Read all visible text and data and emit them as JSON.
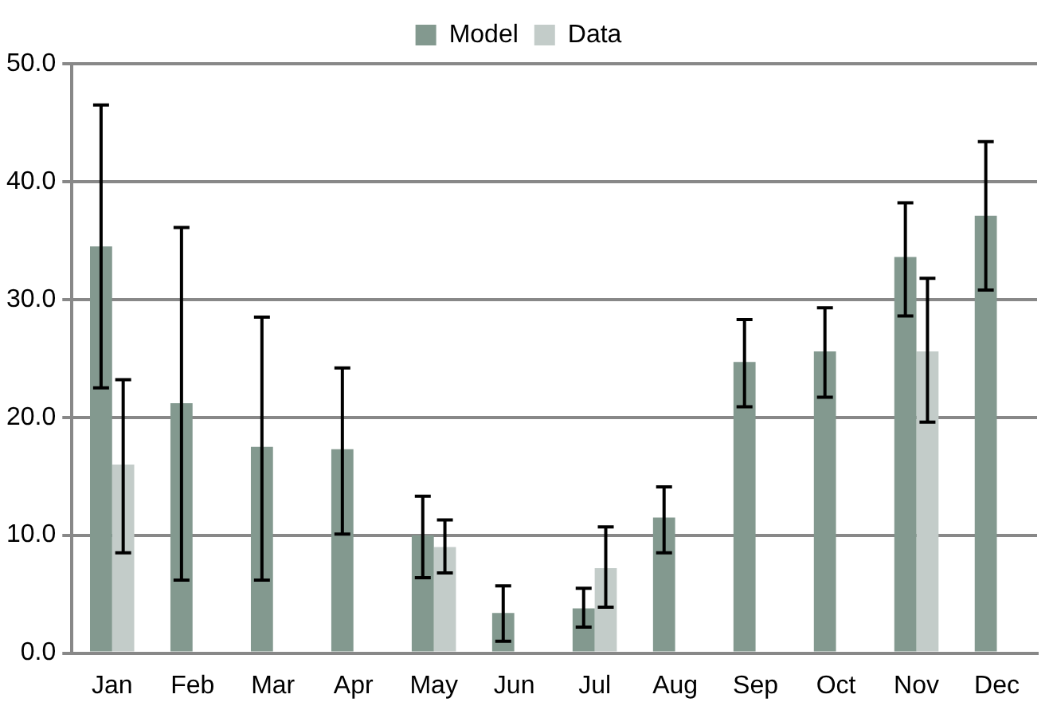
{
  "chart_data": {
    "type": "bar",
    "categories": [
      "Jan",
      "Feb",
      "Mar",
      "Apr",
      "May",
      "Jun",
      "Jul",
      "Aug",
      "Sep",
      "Oct",
      "Nov",
      "Dec"
    ],
    "series": [
      {
        "name": "Model",
        "color": "#83998f",
        "values": [
          34.5,
          21.2,
          17.5,
          17.3,
          10.0,
          3.4,
          3.8,
          11.5,
          24.7,
          25.6,
          33.6,
          37.1
        ],
        "errors": [
          [
            22.5,
            46.5
          ],
          [
            6.2,
            36.1
          ],
          [
            6.2,
            28.5
          ],
          [
            10.1,
            24.2
          ],
          [
            6.4,
            13.3
          ],
          [
            1.0,
            5.7
          ],
          [
            2.2,
            5.5
          ],
          [
            8.5,
            14.1
          ],
          [
            20.9,
            28.3
          ],
          [
            21.7,
            29.3
          ],
          [
            28.6,
            38.2
          ],
          [
            30.8,
            43.4
          ]
        ]
      },
      {
        "name": "Data",
        "color": "#c3ccc9",
        "values": [
          16.0,
          null,
          null,
          null,
          9.0,
          null,
          7.2,
          null,
          null,
          null,
          25.6,
          null
        ],
        "errors": [
          [
            8.5,
            23.2
          ],
          null,
          null,
          null,
          [
            6.8,
            11.3
          ],
          null,
          [
            3.9,
            10.7
          ],
          null,
          null,
          null,
          [
            19.6,
            31.8
          ],
          null
        ]
      }
    ],
    "ylim": [
      0,
      50
    ],
    "yticks": [
      {
        "value": 0,
        "label": "0.0"
      },
      {
        "value": 10,
        "label": "10.0"
      },
      {
        "value": 20,
        "label": "20.0"
      },
      {
        "value": 30,
        "label": "30.0"
      },
      {
        "value": 40,
        "label": "40.0"
      },
      {
        "value": 50,
        "label": "50.0"
      }
    ],
    "grid": "y",
    "legend": "top"
  }
}
